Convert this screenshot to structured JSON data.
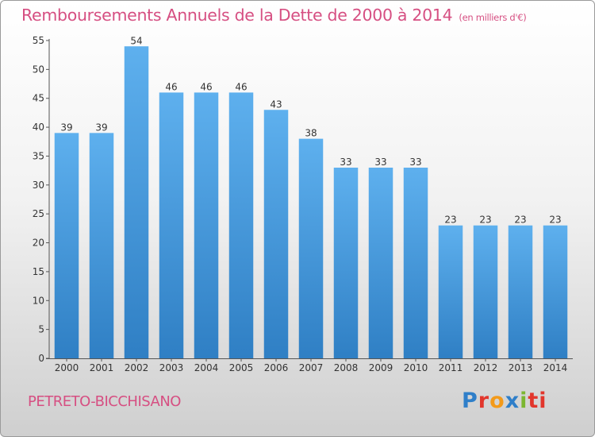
{
  "header": {
    "title": "Remboursements Annuels de la Dette de 2000 à 2014",
    "unit": "(en milliers d'€)"
  },
  "footer": {
    "place": "PETRETO-BICCHISANO",
    "logo_letters": [
      "P",
      "r",
      "o",
      "x",
      "i",
      "ti"
    ]
  },
  "colors": {
    "title": "#d64f82",
    "bar_top": "#5eb0ee",
    "bar_bottom": "#2f7fc4"
  },
  "chart_data": {
    "type": "bar",
    "categories": [
      "2000",
      "2001",
      "2002",
      "2003",
      "2004",
      "2005",
      "2006",
      "2007",
      "2008",
      "2009",
      "2010",
      "2011",
      "2012",
      "2013",
      "2014"
    ],
    "values": [
      39,
      39,
      54,
      46,
      46,
      46,
      43,
      38,
      33,
      33,
      33,
      23,
      23,
      23,
      23
    ],
    "value_labels": [
      "39",
      "39",
      "54",
      "46",
      "46",
      "46",
      "43",
      "38",
      "33",
      "33",
      "33",
      "23",
      "23",
      "23",
      "23"
    ],
    "y_ticks": [
      "0",
      "5",
      "10",
      "15",
      "20",
      "25",
      "30",
      "35",
      "40",
      "45",
      "50",
      "55"
    ],
    "ylim": [
      0,
      55
    ],
    "grid": false,
    "legend": "none"
  }
}
